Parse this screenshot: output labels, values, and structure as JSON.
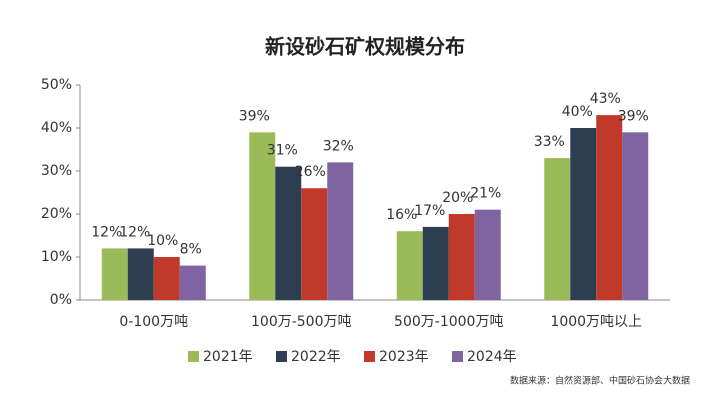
{
  "chart_data": {
    "type": "bar",
    "title": "新设砂石矿权规模分布",
    "categories": [
      "0-100万吨",
      "100万-500万吨",
      "500万-1000万吨",
      "1000万吨以上"
    ],
    "series": [
      {
        "name": "2021年",
        "color": "#9bbb59",
        "values": [
          12,
          39,
          16,
          33
        ],
        "value_labels": [
          "12%",
          "39%",
          "16%",
          "33%"
        ]
      },
      {
        "name": "2022年",
        "color": "#2c3e50",
        "values": [
          12,
          31,
          17,
          40
        ],
        "value_labels": [
          "12%",
          "31%",
          "17%",
          "40%"
        ]
      },
      {
        "name": "2023年",
        "color": "#c0392b",
        "values": [
          10,
          26,
          20,
          43
        ],
        "value_labels": [
          "10%",
          "26%",
          "20%",
          "43%"
        ]
      },
      {
        "name": "2024年",
        "color": "#8064a2",
        "values": [
          8,
          32,
          21,
          39
        ],
        "value_labels": [
          "8%",
          "32%",
          "21%",
          "39%"
        ]
      }
    ],
    "ylim": [
      0,
      50
    ],
    "yticks": [
      {
        "value": 0,
        "label": "0%"
      },
      {
        "value": 10,
        "label": "10%"
      },
      {
        "value": 20,
        "label": "20%"
      },
      {
        "value": 30,
        "label": "30%"
      },
      {
        "value": 40,
        "label": "40%"
      },
      {
        "value": 50,
        "label": "50%"
      }
    ],
    "source": "数据来源：自然资源部、中国砂石协会大数据"
  }
}
